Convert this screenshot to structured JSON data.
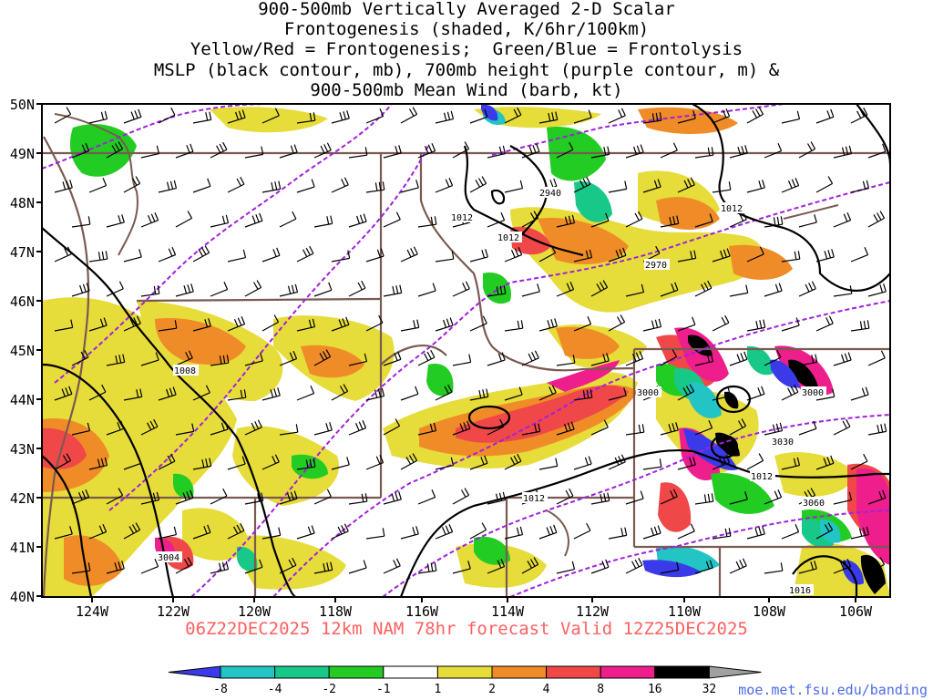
{
  "title_lines": [
    "900-500mb Vertically Averaged 2-D Scalar",
    "Frontogenesis (shaded, K/6hr/100km)",
    "Yellow/Red = Frontogenesis;  Green/Blue = Frontolysis",
    "MSLP (black contour, mb), 700mb height (purple contour, m) &",
    "900-500mb Mean Wind (barb, kt)"
  ],
  "valid_line": "06Z22DEC2025 12km NAM 78hr forecast Valid 12Z25DEC2025",
  "credit": "moe.met.fsu.edu/banding",
  "map": {
    "lat_labels": [
      "50N",
      "49N",
      "48N",
      "47N",
      "46N",
      "45N",
      "44N",
      "43N",
      "42N",
      "41N",
      "40N"
    ],
    "lon_labels": [
      "124W",
      "122W",
      "120W",
      "118W",
      "116W",
      "114W",
      "112W",
      "110W",
      "108W",
      "106W"
    ],
    "mslp_labels": [
      "1012",
      "1012",
      "1008",
      "1012",
      "1012",
      "1012",
      "1016"
    ],
    "height_labels": [
      "2940",
      "2970",
      "3000",
      "3000",
      "3030",
      "3060",
      "3004"
    ]
  },
  "colorbar": {
    "labels": [
      "-8",
      "-4",
      "-2",
      "-1",
      "1",
      "2",
      "4",
      "8",
      "16",
      "32"
    ],
    "colors": [
      "#3a3ae8",
      "#22c4c4",
      "#18c888",
      "#22cc22",
      "#ffffff",
      "#e6dc3a",
      "#f08c28",
      "#f04848",
      "#ee1e8c",
      "#000000",
      "#a0a0a0"
    ]
  },
  "colors": {
    "mslp_contour": "#000000",
    "height_contour": "#a020e0",
    "borders": "#7a5a50",
    "valid_text": "#ff6060",
    "credit_text": "#4b6be8"
  }
}
